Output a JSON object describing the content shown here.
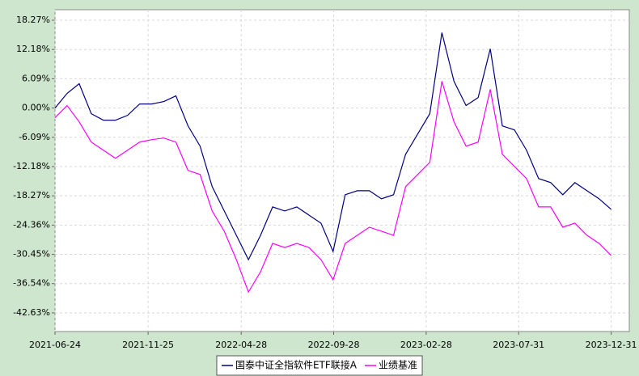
{
  "chart_data": {
    "type": "line",
    "x": [
      "2021-06-24",
      "2021-07-14",
      "2021-08-03",
      "2021-08-23",
      "2021-09-12",
      "2021-10-02",
      "2021-10-22",
      "2021-11-11",
      "2021-12-01",
      "2021-12-21",
      "2022-01-10",
      "2022-01-30",
      "2022-02-19",
      "2022-03-11",
      "2022-03-31",
      "2022-04-20",
      "2022-05-10",
      "2022-05-30",
      "2022-06-19",
      "2022-07-09",
      "2022-07-29",
      "2022-08-18",
      "2022-09-07",
      "2022-09-27",
      "2022-10-17",
      "2022-11-06",
      "2022-11-26",
      "2022-12-16",
      "2023-01-05",
      "2023-01-25",
      "2023-02-14",
      "2023-03-06",
      "2023-03-26",
      "2023-04-15",
      "2023-05-05",
      "2023-05-25",
      "2023-06-14",
      "2023-07-04",
      "2023-07-24",
      "2023-08-13",
      "2023-09-02",
      "2023-09-22",
      "2023-10-12",
      "2023-11-01",
      "2023-11-21",
      "2023-12-11",
      "2023-12-31"
    ],
    "series": [
      {
        "name": "国泰中证全指软件ETF联接A",
        "color": "#000080",
        "values": [
          0,
          3.04,
          5.06,
          -1.18,
          -2.53,
          -2.53,
          -1.52,
          0.84,
          0.84,
          1.35,
          2.53,
          -3.71,
          -7.93,
          -16.36,
          -21.42,
          -26.49,
          -31.55,
          -26.49,
          -20.58,
          -21.42,
          -20.58,
          -22.27,
          -23.96,
          -29.86,
          -18.05,
          -17.21,
          -17.21,
          -18.89,
          -18.05,
          -9.62,
          -5.4,
          -1.18,
          15.69,
          5.57,
          0.51,
          2.19,
          12.32,
          -3.71,
          -4.55,
          -8.77,
          -14.68,
          -15.52,
          -18.05,
          -15.52,
          -17.21,
          -18.89,
          -21.09
        ]
      },
      {
        "name": "业绩基准",
        "color": "#ff00ff",
        "values": [
          -2.02,
          0.51,
          -2.87,
          -7.09,
          -8.77,
          -10.46,
          -8.77,
          -7.09,
          -6.58,
          -6.24,
          -7.09,
          -12.99,
          -13.83,
          -21.42,
          -25.64,
          -31.55,
          -38.29,
          -34.08,
          -28.17,
          -29.02,
          -28.17,
          -29.02,
          -31.55,
          -35.76,
          -28.17,
          -26.49,
          -24.8,
          -25.64,
          -26.49,
          -16.36,
          -13.83,
          -11.3,
          5.57,
          -2.87,
          -7.93,
          -7.09,
          3.88,
          -9.62,
          -12.15,
          -14.68,
          -20.58,
          -20.58,
          -24.8,
          -23.96,
          -26.49,
          -28.17,
          -30.7
        ]
      }
    ],
    "xlim": [
      "2021-06-24",
      "2024-01-30"
    ],
    "xticks": [
      "2021-06-24",
      "2021-11-25",
      "2022-04-28",
      "2022-09-28",
      "2023-02-28",
      "2023-07-31",
      "2023-12-31"
    ],
    "ylim": [
      -46.51,
      20.46
    ],
    "yticks": [
      {
        "value": 18.27,
        "label": "18.27%"
      },
      {
        "value": 12.18,
        "label": "12.18%"
      },
      {
        "value": 6.09,
        "label": "6.09%"
      },
      {
        "value": 0,
        "label": "0.00%"
      },
      {
        "value": -6.09,
        "label": "-6.09%"
      },
      {
        "value": -12.18,
        "label": "-12.18%"
      },
      {
        "value": -18.27,
        "label": "-18.27%"
      },
      {
        "value": -24.36,
        "label": "-24.36%"
      },
      {
        "value": -30.45,
        "label": "-30.45%"
      },
      {
        "value": -36.54,
        "label": "-36.54%"
      },
      {
        "value": -42.63,
        "label": "-42.63%"
      }
    ],
    "grid": true,
    "legend": "bottom"
  }
}
